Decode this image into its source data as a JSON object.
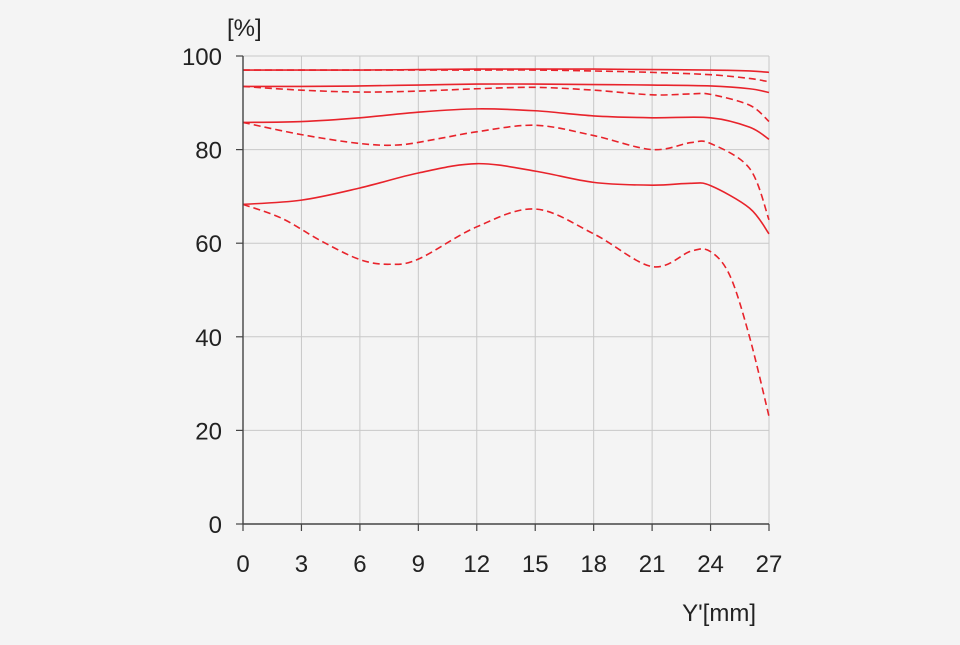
{
  "chart_data": {
    "type": "line",
    "title": "",
    "xlabel": "Y'[mm]",
    "ylabel": "[%]",
    "xlim": [
      0,
      27
    ],
    "ylim": [
      0,
      100
    ],
    "x_ticks": [
      0,
      3,
      6,
      9,
      12,
      15,
      18,
      21,
      24,
      27
    ],
    "y_ticks": [
      0,
      20,
      40,
      60,
      80,
      100
    ],
    "grid": true,
    "colors": {
      "series": "#e8232b",
      "grid": "#c8c8c8",
      "axis": "#444444",
      "background": "#f4f4f4"
    },
    "series": [
      {
        "style": "solid",
        "x": [
          0,
          3,
          6,
          9,
          12,
          15,
          18,
          21,
          24,
          26,
          27
        ],
        "y": [
          97,
          97,
          97,
          97.1,
          97.2,
          97.2,
          97.2,
          97.1,
          97,
          96.8,
          96.5
        ]
      },
      {
        "style": "dashed",
        "x": [
          0,
          3,
          6,
          9,
          12,
          15,
          18,
          21,
          24,
          26,
          27
        ],
        "y": [
          97,
          97,
          97,
          97,
          97,
          97,
          96.8,
          96.5,
          96,
          95.2,
          94.5
        ]
      },
      {
        "style": "solid",
        "x": [
          0,
          3,
          6,
          9,
          12,
          15,
          18,
          21,
          24,
          26,
          27
        ],
        "y": [
          93.5,
          93.5,
          93.6,
          93.8,
          94,
          94,
          93.9,
          93.8,
          93.6,
          93,
          92.2
        ]
      },
      {
        "style": "dashed",
        "x": [
          0,
          3,
          6,
          9,
          12,
          15,
          18,
          21,
          23,
          24,
          26,
          27
        ],
        "y": [
          93.5,
          92.7,
          92.3,
          92.5,
          93,
          93.3,
          92.7,
          91.7,
          91.9,
          91.8,
          89.5,
          86
        ]
      },
      {
        "style": "solid",
        "x": [
          0,
          3,
          6,
          9,
          12,
          15,
          18,
          21,
          24,
          26,
          27
        ],
        "y": [
          85.8,
          86,
          86.8,
          88,
          88.7,
          88.3,
          87.2,
          86.8,
          86.8,
          84.8,
          82.2
        ]
      },
      {
        "style": "dashed",
        "x": [
          0,
          3,
          6,
          8,
          10,
          12,
          15,
          18,
          21,
          23,
          24,
          26,
          27
        ],
        "y": [
          85.8,
          83.2,
          81.3,
          81,
          82.3,
          83.8,
          85.2,
          83,
          80,
          81.5,
          81.3,
          76,
          65
        ]
      },
      {
        "style": "solid",
        "x": [
          0,
          3,
          6,
          9,
          12,
          15,
          18,
          21,
          23,
          24,
          26,
          27
        ],
        "y": [
          68.3,
          69.2,
          71.8,
          75,
          77,
          75.4,
          73,
          72.4,
          72.8,
          72.3,
          67.5,
          62
        ]
      },
      {
        "style": "dashed",
        "x": [
          0,
          2,
          4,
          6,
          7.5,
          9,
          12,
          15,
          18,
          21,
          23,
          24,
          25,
          26,
          27
        ],
        "y": [
          68.3,
          65.3,
          60.5,
          56.5,
          55.5,
          56.6,
          63.5,
          67.3,
          62,
          55,
          58.3,
          58.2,
          53,
          40,
          23
        ]
      }
    ]
  }
}
